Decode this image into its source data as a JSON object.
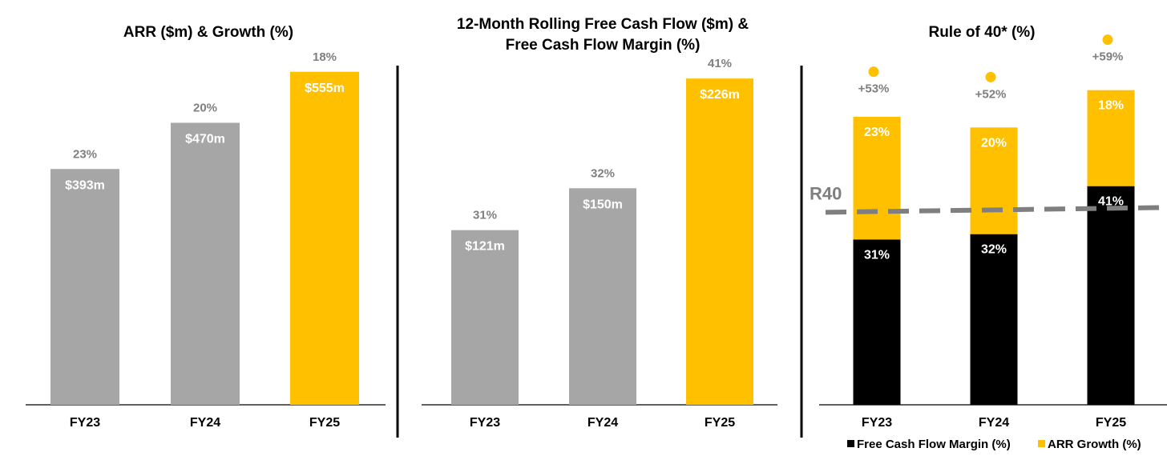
{
  "colors": {
    "gray": "#a6a6a6",
    "yellow": "#ffc000",
    "black": "#000000",
    "label_gray": "#7f7f7f",
    "r40_line": "#7f7f7f"
  },
  "chart_data": [
    {
      "type": "bar",
      "title": "ARR ($m) & Growth (%)",
      "categories": [
        "FY23",
        "FY24",
        "FY25"
      ],
      "values": [
        393,
        470,
        555
      ],
      "value_labels": [
        "$393m",
        "$470m",
        "$555m"
      ],
      "top_labels": [
        "23%",
        "20%",
        "18%"
      ],
      "highlight_index": 2,
      "ylim": [
        0,
        640
      ]
    },
    {
      "type": "bar",
      "title_lines": [
        "12-Month Rolling Free Cash Flow ($m) &",
        "Free Cash Flow Margin (%)"
      ],
      "categories": [
        "FY23",
        "FY24",
        "FY25"
      ],
      "values": [
        121,
        150,
        226
      ],
      "value_labels": [
        "$121m",
        "$150m",
        "$226m"
      ],
      "top_labels": [
        "31%",
        "32%",
        "41%"
      ],
      "highlight_index": 2,
      "ylim": [
        0,
        266
      ]
    },
    {
      "type": "stacked-bar",
      "title": "Rule of 40* (%)",
      "categories": [
        "FY23",
        "FY24",
        "FY25"
      ],
      "series": [
        {
          "name": "Free Cash Flow Margin (%)",
          "values": [
            31,
            32,
            41
          ],
          "labels": [
            "31%",
            "32%",
            "41%"
          ]
        },
        {
          "name": "ARR Growth (%)",
          "values": [
            23,
            20,
            18
          ],
          "labels": [
            "23%",
            "20%",
            "18%"
          ]
        }
      ],
      "totals": [
        53,
        52,
        59
      ],
      "total_labels": [
        "+53%",
        "+52%",
        "+59%"
      ],
      "reference_line": {
        "label": "R40",
        "value": 40
      },
      "ylim": [
        0,
        72
      ]
    }
  ]
}
